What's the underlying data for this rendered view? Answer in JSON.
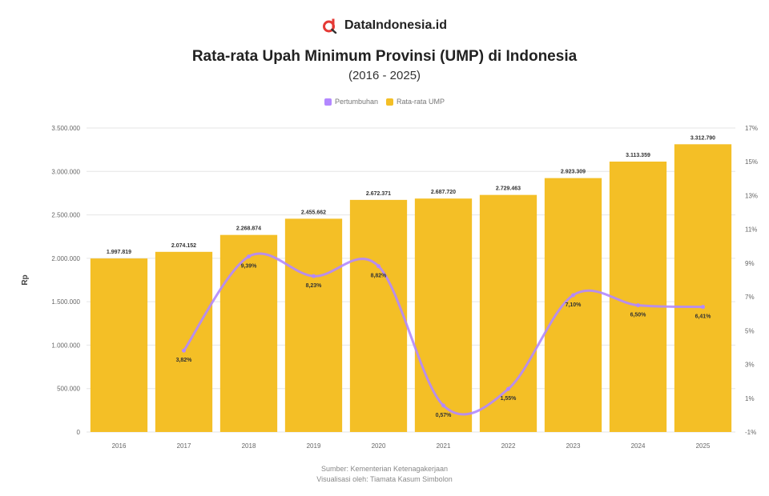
{
  "brand": {
    "name": "DataIndonesia.id",
    "logo_icon": "magnifier-d-logo",
    "logo_color": "#e53935"
  },
  "header": {
    "title": "Rata-rata Upah Minimum Provinsi (UMP) di Indonesia",
    "subtitle": "(2016 - 2025)"
  },
  "legend": {
    "items": [
      {
        "label": "Pertumbuhan",
        "color": "#b388ff"
      },
      {
        "label": "Rata-rata UMP",
        "color": "#f4bf26"
      }
    ]
  },
  "footer": {
    "source": "Sumber: Kementerian Ketenagakerjaan",
    "credit": "Visualisasi oleh: Tiamata Kasum Simbolon"
  },
  "chart_data": {
    "type": "bar",
    "categories": [
      "2016",
      "2017",
      "2018",
      "2019",
      "2020",
      "2021",
      "2022",
      "2023",
      "2024",
      "2025"
    ],
    "series": [
      {
        "name": "Rata-rata UMP",
        "type": "bar",
        "axis": "left",
        "color": "#f4bf26",
        "values": [
          1997819,
          2074152,
          2268874,
          2455662,
          2672371,
          2687720,
          2729463,
          2923309,
          3113359,
          3312790
        ],
        "labels": [
          "1.997.819",
          "2.074.152",
          "2.268.874",
          "2.455.662",
          "2.672.371",
          "2.687.720",
          "2.729.463",
          "2.923.309",
          "3.113.359",
          "3.312.790"
        ]
      },
      {
        "name": "Pertumbuhan",
        "type": "line",
        "axis": "right",
        "color": "#b388ff",
        "values": [
          null,
          3.82,
          9.39,
          8.23,
          8.82,
          0.57,
          1.55,
          7.1,
          6.5,
          6.41
        ],
        "labels": [
          "",
          "3,82%",
          "9,39%",
          "8,23%",
          "8,82%",
          "0,57%",
          "1,55%",
          "7,10%",
          "6,50%",
          "6,41%"
        ]
      }
    ],
    "y_left": {
      "label": "Rp",
      "ylim": [
        0,
        3500000
      ],
      "ticks": [
        0,
        500000,
        1000000,
        1500000,
        2000000,
        2500000,
        3000000,
        3500000
      ],
      "tick_labels": [
        "0",
        "500.000",
        "1.000.000",
        "1.500.000",
        "2.000.000",
        "2.500.000",
        "3.000.000",
        "3.500.000"
      ]
    },
    "y_right": {
      "label": "",
      "ylim": [
        -1,
        17
      ],
      "ticks": [
        -1,
        1,
        3,
        5,
        7,
        9,
        11,
        13,
        15,
        17
      ],
      "tick_labels": [
        "-1%",
        "1%",
        "3%",
        "5%",
        "7%",
        "9%",
        "11%",
        "13%",
        "15%",
        "17%"
      ]
    },
    "grid": true,
    "legend_position": "top-center"
  }
}
